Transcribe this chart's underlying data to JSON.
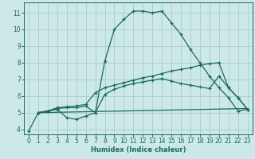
{
  "xlabel": "Humidex (Indice chaleur)",
  "background_color": "#cce8e8",
  "grid_color": "#aacccc",
  "line_color": "#1a6b5a",
  "xlim": [
    -0.5,
    23.5
  ],
  "ylim": [
    3.7,
    11.6
  ],
  "yticks": [
    4,
    5,
    6,
    7,
    8,
    9,
    10,
    11
  ],
  "xticks": [
    0,
    1,
    2,
    3,
    4,
    5,
    6,
    7,
    8,
    9,
    10,
    11,
    12,
    13,
    14,
    15,
    16,
    17,
    18,
    19,
    20,
    21,
    22,
    23
  ],
  "line1_x": [
    0,
    1,
    2,
    3,
    4,
    5,
    6,
    7,
    8,
    9,
    10,
    11,
    12,
    13,
    14,
    15,
    16,
    17,
    18,
    19,
    20,
    21,
    22,
    23
  ],
  "line1_y": [
    3.9,
    5.0,
    5.1,
    5.2,
    4.7,
    4.6,
    4.8,
    5.0,
    8.1,
    10.0,
    10.6,
    11.1,
    11.1,
    11.0,
    11.1,
    10.4,
    9.7,
    8.8,
    8.0,
    7.2,
    6.5,
    5.9,
    5.1,
    5.2
  ],
  "line2_x": [
    1,
    2,
    3,
    4,
    5,
    6,
    7,
    8,
    9,
    10,
    11,
    12,
    13,
    14,
    15,
    16,
    17,
    18,
    19,
    20,
    21,
    22,
    23
  ],
  "line2_y": [
    5.0,
    5.1,
    5.3,
    5.35,
    5.4,
    5.5,
    6.2,
    6.5,
    6.65,
    6.8,
    6.95,
    7.1,
    7.2,
    7.35,
    7.5,
    7.6,
    7.7,
    7.85,
    7.95,
    8.0,
    6.5,
    5.9,
    5.2
  ],
  "line3_x": [
    1,
    2,
    3,
    4,
    5,
    6,
    7,
    8,
    9,
    10,
    11,
    12,
    13,
    14,
    15,
    16,
    17,
    18,
    19,
    20,
    21,
    22,
    23
  ],
  "line3_y": [
    5.0,
    5.1,
    5.25,
    5.3,
    5.3,
    5.4,
    5.0,
    6.1,
    6.4,
    6.6,
    6.75,
    6.85,
    6.95,
    7.05,
    6.9,
    6.75,
    6.65,
    6.55,
    6.45,
    7.2,
    6.5,
    5.9,
    5.2
  ],
  "line4_x": [
    1,
    23
  ],
  "line4_y": [
    5.0,
    5.25
  ]
}
